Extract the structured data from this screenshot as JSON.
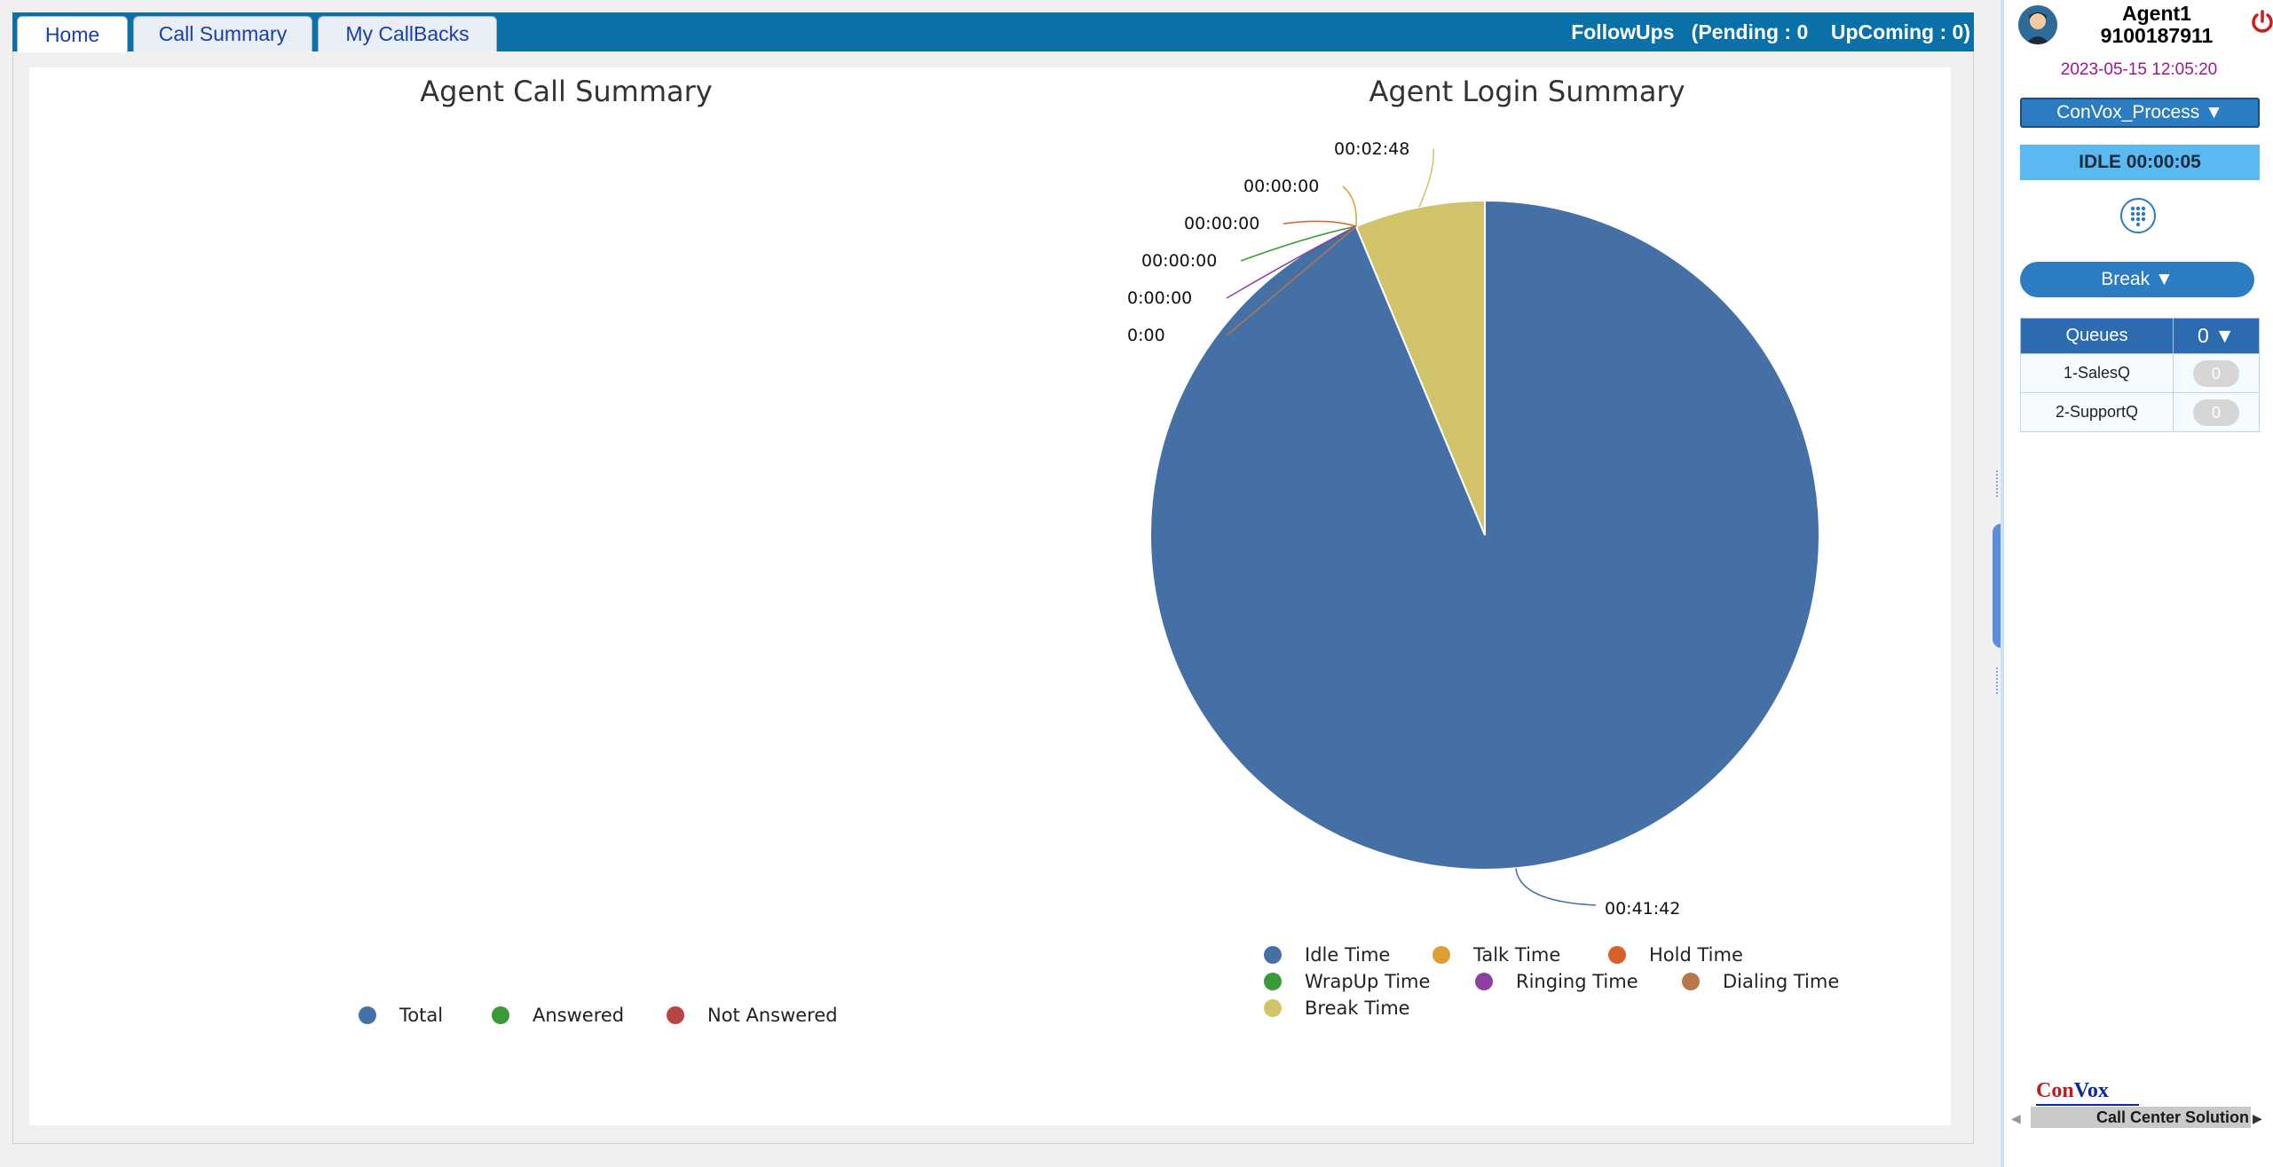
{
  "tabs": [
    {
      "label": "Home",
      "active": true
    },
    {
      "label": "Call Summary",
      "active": false
    },
    {
      "label": "My CallBacks",
      "active": false
    }
  ],
  "followups": {
    "label": "FollowUps",
    "pending": "(Pending : 0",
    "upcoming": "UpComing : 0)"
  },
  "call_chart": {
    "title": "Agent Call Summary",
    "legend": [
      {
        "label": "Total",
        "color": "#4472a8"
      },
      {
        "label": "Answered",
        "color": "#3a9a3a"
      },
      {
        "label": "Not Answered",
        "color": "#b84444"
      }
    ]
  },
  "chart_data": {
    "type": "pie",
    "title": "Agent Login Summary",
    "categories": [
      "Idle Time",
      "Talk Time",
      "Hold Time",
      "WrapUp Time",
      "Ringing Time",
      "Dialing Time",
      "Break Time"
    ],
    "values": [
      2502,
      0,
      0,
      0,
      0,
      0,
      168
    ],
    "value_labels": [
      "00:41:42",
      "00:00:00",
      "00:00:00",
      "00:00:00",
      "0:00:00",
      "0:00",
      "00:02:48"
    ],
    "colors": [
      "#4470a5",
      "#dda02e",
      "#d9602a",
      "#3a9a3a",
      "#8e3fa0",
      "#b8764a",
      "#d0c36a"
    ],
    "legend_position": "bottom"
  },
  "agent": {
    "name": "Agent1",
    "phone": "9100187911",
    "datetime": "2023-05-15 12:05:20",
    "process": "ConVox_Process ▼",
    "status": "IDLE 00:00:05",
    "break_label": "Break ▼"
  },
  "queues": {
    "header_label": "Queues",
    "header_count": "0 ▼",
    "rows": [
      {
        "name": "1-SalesQ",
        "count": "0"
      },
      {
        "name": "2-SupportQ",
        "count": "0"
      }
    ]
  },
  "brand": {
    "con": "Con",
    "vox": "Vox",
    "subtitle": "Call Center Solution"
  },
  "icons": {
    "avatar": "agent-avatar-icon",
    "power": "power-icon",
    "dialpad": "dialpad-icon"
  }
}
